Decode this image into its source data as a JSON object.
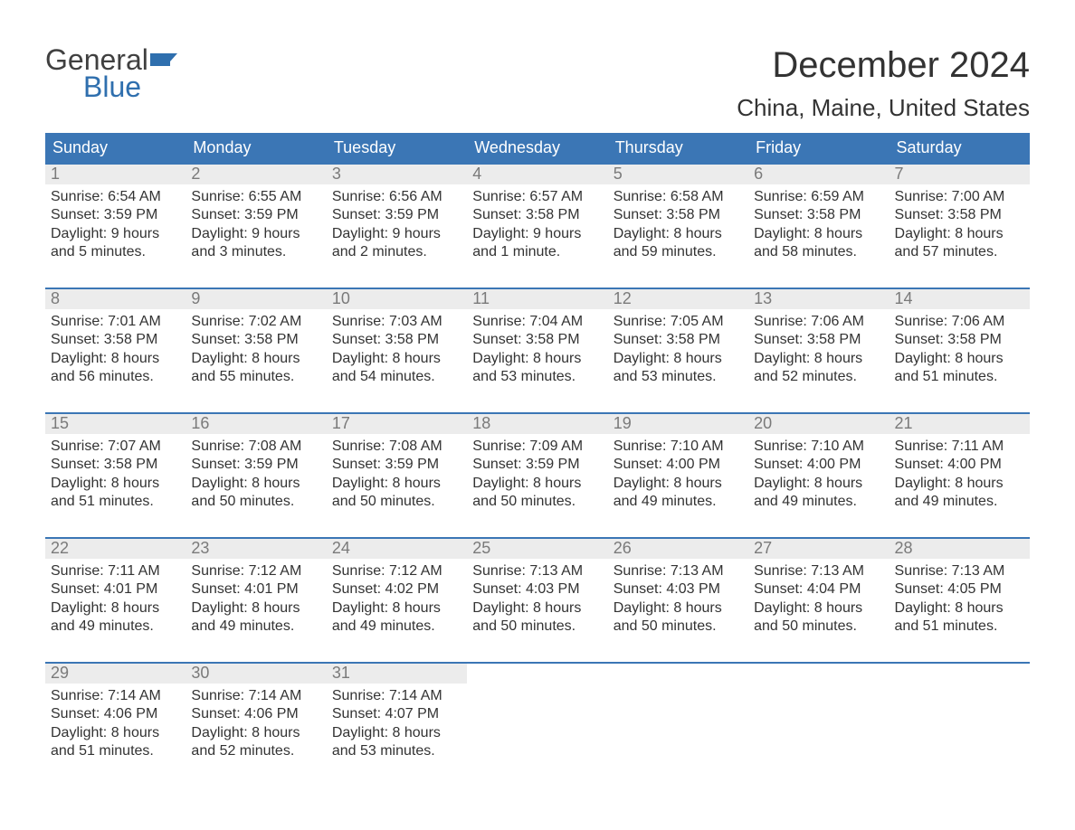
{
  "logo": {
    "word1": "General",
    "word2": "Blue",
    "flag_color": "#2f6fae",
    "text_gray": "#404040"
  },
  "title": "December 2024",
  "location": "China, Maine, United States",
  "colors": {
    "header_bg": "#3b76b5",
    "header_text": "#ffffff",
    "daynum_bg": "#ececec",
    "daynum_text": "#7a7a7a",
    "body_text": "#333333",
    "week_border": "#3b76b5",
    "page_bg": "#ffffff"
  },
  "day_headers": [
    "Sunday",
    "Monday",
    "Tuesday",
    "Wednesday",
    "Thursday",
    "Friday",
    "Saturday"
  ],
  "weeks": [
    [
      {
        "n": "1",
        "sr": "Sunrise: 6:54 AM",
        "ss": "Sunset: 3:59 PM",
        "d1": "Daylight: 9 hours",
        "d2": "and 5 minutes."
      },
      {
        "n": "2",
        "sr": "Sunrise: 6:55 AM",
        "ss": "Sunset: 3:59 PM",
        "d1": "Daylight: 9 hours",
        "d2": "and 3 minutes."
      },
      {
        "n": "3",
        "sr": "Sunrise: 6:56 AM",
        "ss": "Sunset: 3:59 PM",
        "d1": "Daylight: 9 hours",
        "d2": "and 2 minutes."
      },
      {
        "n": "4",
        "sr": "Sunrise: 6:57 AM",
        "ss": "Sunset: 3:58 PM",
        "d1": "Daylight: 9 hours",
        "d2": "and 1 minute."
      },
      {
        "n": "5",
        "sr": "Sunrise: 6:58 AM",
        "ss": "Sunset: 3:58 PM",
        "d1": "Daylight: 8 hours",
        "d2": "and 59 minutes."
      },
      {
        "n": "6",
        "sr": "Sunrise: 6:59 AM",
        "ss": "Sunset: 3:58 PM",
        "d1": "Daylight: 8 hours",
        "d2": "and 58 minutes."
      },
      {
        "n": "7",
        "sr": "Sunrise: 7:00 AM",
        "ss": "Sunset: 3:58 PM",
        "d1": "Daylight: 8 hours",
        "d2": "and 57 minutes."
      }
    ],
    [
      {
        "n": "8",
        "sr": "Sunrise: 7:01 AM",
        "ss": "Sunset: 3:58 PM",
        "d1": "Daylight: 8 hours",
        "d2": "and 56 minutes."
      },
      {
        "n": "9",
        "sr": "Sunrise: 7:02 AM",
        "ss": "Sunset: 3:58 PM",
        "d1": "Daylight: 8 hours",
        "d2": "and 55 minutes."
      },
      {
        "n": "10",
        "sr": "Sunrise: 7:03 AM",
        "ss": "Sunset: 3:58 PM",
        "d1": "Daylight: 8 hours",
        "d2": "and 54 minutes."
      },
      {
        "n": "11",
        "sr": "Sunrise: 7:04 AM",
        "ss": "Sunset: 3:58 PM",
        "d1": "Daylight: 8 hours",
        "d2": "and 53 minutes."
      },
      {
        "n": "12",
        "sr": "Sunrise: 7:05 AM",
        "ss": "Sunset: 3:58 PM",
        "d1": "Daylight: 8 hours",
        "d2": "and 53 minutes."
      },
      {
        "n": "13",
        "sr": "Sunrise: 7:06 AM",
        "ss": "Sunset: 3:58 PM",
        "d1": "Daylight: 8 hours",
        "d2": "and 52 minutes."
      },
      {
        "n": "14",
        "sr": "Sunrise: 7:06 AM",
        "ss": "Sunset: 3:58 PM",
        "d1": "Daylight: 8 hours",
        "d2": "and 51 minutes."
      }
    ],
    [
      {
        "n": "15",
        "sr": "Sunrise: 7:07 AM",
        "ss": "Sunset: 3:58 PM",
        "d1": "Daylight: 8 hours",
        "d2": "and 51 minutes."
      },
      {
        "n": "16",
        "sr": "Sunrise: 7:08 AM",
        "ss": "Sunset: 3:59 PM",
        "d1": "Daylight: 8 hours",
        "d2": "and 50 minutes."
      },
      {
        "n": "17",
        "sr": "Sunrise: 7:08 AM",
        "ss": "Sunset: 3:59 PM",
        "d1": "Daylight: 8 hours",
        "d2": "and 50 minutes."
      },
      {
        "n": "18",
        "sr": "Sunrise: 7:09 AM",
        "ss": "Sunset: 3:59 PM",
        "d1": "Daylight: 8 hours",
        "d2": "and 50 minutes."
      },
      {
        "n": "19",
        "sr": "Sunrise: 7:10 AM",
        "ss": "Sunset: 4:00 PM",
        "d1": "Daylight: 8 hours",
        "d2": "and 49 minutes."
      },
      {
        "n": "20",
        "sr": "Sunrise: 7:10 AM",
        "ss": "Sunset: 4:00 PM",
        "d1": "Daylight: 8 hours",
        "d2": "and 49 minutes."
      },
      {
        "n": "21",
        "sr": "Sunrise: 7:11 AM",
        "ss": "Sunset: 4:00 PM",
        "d1": "Daylight: 8 hours",
        "d2": "and 49 minutes."
      }
    ],
    [
      {
        "n": "22",
        "sr": "Sunrise: 7:11 AM",
        "ss": "Sunset: 4:01 PM",
        "d1": "Daylight: 8 hours",
        "d2": "and 49 minutes."
      },
      {
        "n": "23",
        "sr": "Sunrise: 7:12 AM",
        "ss": "Sunset: 4:01 PM",
        "d1": "Daylight: 8 hours",
        "d2": "and 49 minutes."
      },
      {
        "n": "24",
        "sr": "Sunrise: 7:12 AM",
        "ss": "Sunset: 4:02 PM",
        "d1": "Daylight: 8 hours",
        "d2": "and 49 minutes."
      },
      {
        "n": "25",
        "sr": "Sunrise: 7:13 AM",
        "ss": "Sunset: 4:03 PM",
        "d1": "Daylight: 8 hours",
        "d2": "and 50 minutes."
      },
      {
        "n": "26",
        "sr": "Sunrise: 7:13 AM",
        "ss": "Sunset: 4:03 PM",
        "d1": "Daylight: 8 hours",
        "d2": "and 50 minutes."
      },
      {
        "n": "27",
        "sr": "Sunrise: 7:13 AM",
        "ss": "Sunset: 4:04 PM",
        "d1": "Daylight: 8 hours",
        "d2": "and 50 minutes."
      },
      {
        "n": "28",
        "sr": "Sunrise: 7:13 AM",
        "ss": "Sunset: 4:05 PM",
        "d1": "Daylight: 8 hours",
        "d2": "and 51 minutes."
      }
    ],
    [
      {
        "n": "29",
        "sr": "Sunrise: 7:14 AM",
        "ss": "Sunset: 4:06 PM",
        "d1": "Daylight: 8 hours",
        "d2": "and 51 minutes."
      },
      {
        "n": "30",
        "sr": "Sunrise: 7:14 AM",
        "ss": "Sunset: 4:06 PM",
        "d1": "Daylight: 8 hours",
        "d2": "and 52 minutes."
      },
      {
        "n": "31",
        "sr": "Sunrise: 7:14 AM",
        "ss": "Sunset: 4:07 PM",
        "d1": "Daylight: 8 hours",
        "d2": "and 53 minutes."
      },
      null,
      null,
      null,
      null
    ]
  ]
}
